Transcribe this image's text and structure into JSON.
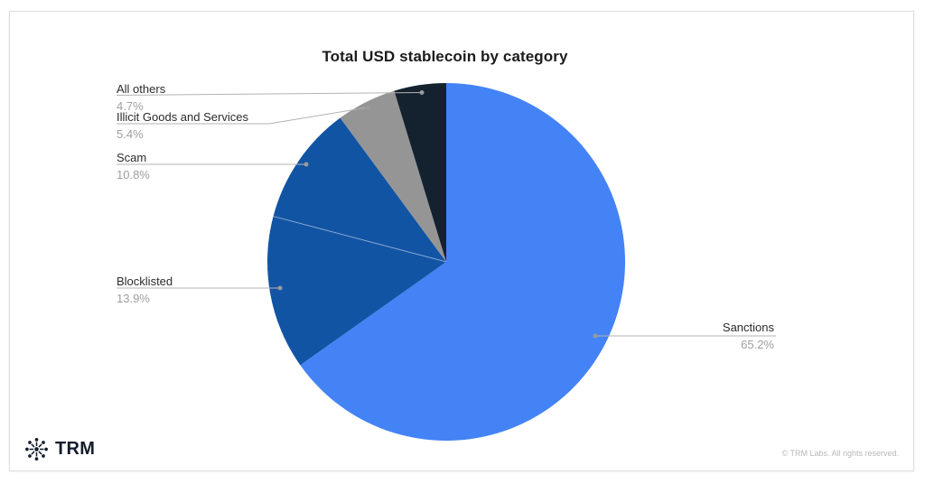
{
  "chart_data": {
    "type": "pie",
    "title": "Total USD stablecoin by category",
    "legend_position": "labeled-callouts",
    "start_angle_deg": 0,
    "direction": "clockwise",
    "slices": [
      {
        "label": "Sanctions",
        "value": 65.2,
        "pct": "65.2%",
        "color": "#4383f5"
      },
      {
        "label": "Blocklisted",
        "value": 13.9,
        "pct": "13.9%",
        "color": "#1254a4"
      },
      {
        "label": "Scam",
        "value": 10.8,
        "pct": "10.8%",
        "color": "#1254a4"
      },
      {
        "label": "Illicit Goods and Services",
        "value": 5.4,
        "pct": "5.4%",
        "color": "#959595"
      },
      {
        "label": "All others",
        "value": 4.7,
        "pct": "4.7%",
        "color": "#14222f"
      }
    ]
  },
  "footer": {
    "brand": "TRM",
    "copyright": "© TRM Labs. All rights reserved."
  },
  "colors": {
    "leader_line": "#b3b3b3",
    "leader_dot": "#9a9a9a",
    "label_text": "#2b2b2b",
    "pct_text": "#9e9e9e",
    "brand_navy": "#131c2b"
  }
}
